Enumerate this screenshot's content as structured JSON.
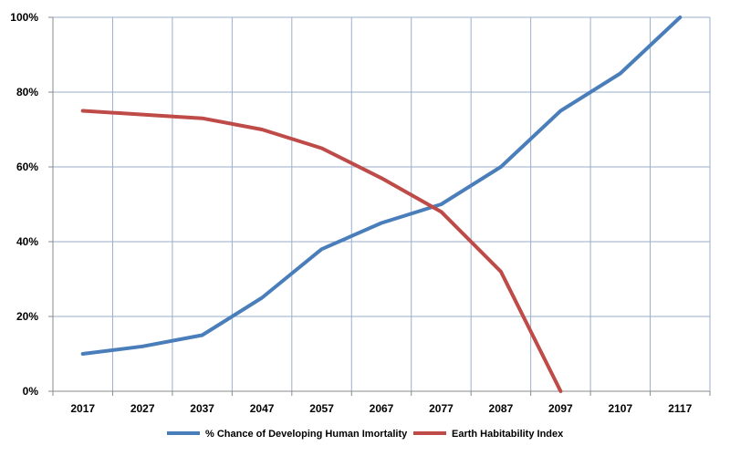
{
  "chart_data": {
    "type": "line",
    "title": "",
    "xlabel": "",
    "ylabel": "",
    "categories": [
      "2017",
      "2027",
      "2037",
      "2047",
      "2057",
      "2067",
      "2077",
      "2087",
      "2097",
      "2107",
      "2117"
    ],
    "y_ticks": [
      "0%",
      "20%",
      "40%",
      "60%",
      "80%",
      "100%"
    ],
    "ylim": [
      0,
      100
    ],
    "grid": true,
    "legend_position": "bottom",
    "series": [
      {
        "name": "% Chance of Developing Human Imortality",
        "color": "#4a7ebb",
        "values": [
          10,
          12,
          15,
          25,
          38,
          45,
          50,
          60,
          75,
          85,
          100
        ]
      },
      {
        "name": "Earth Habitability Index",
        "color": "#be4b48",
        "values": [
          75,
          74,
          73,
          70,
          65,
          57,
          48,
          32,
          0,
          null,
          null
        ]
      }
    ]
  }
}
